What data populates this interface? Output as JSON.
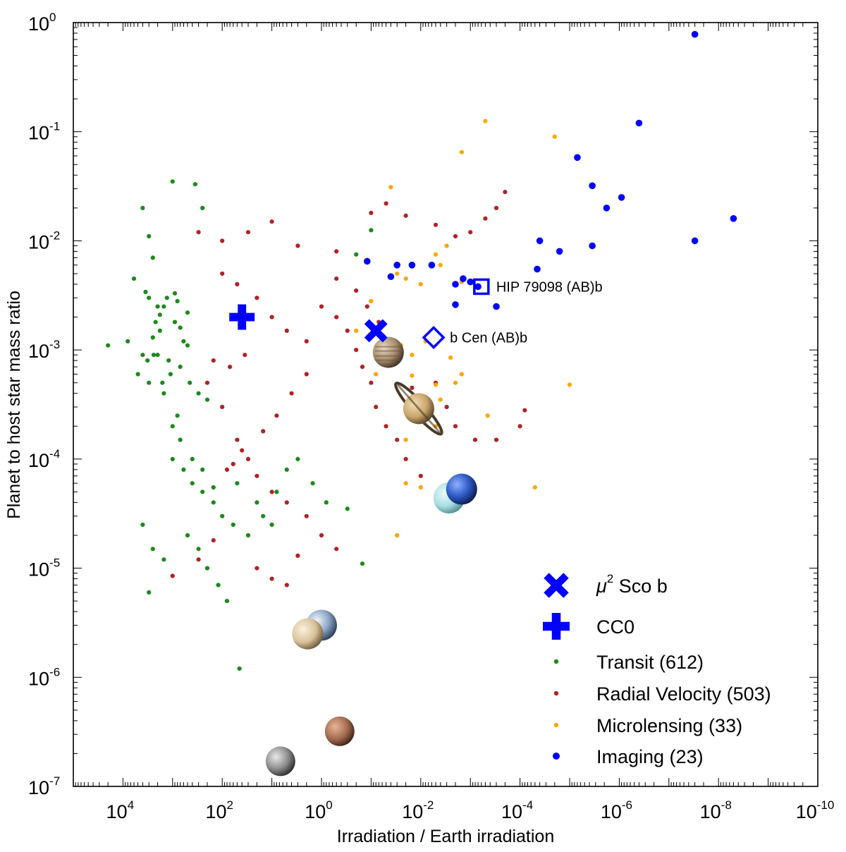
{
  "chart_data": {
    "type": "scatter",
    "xlabel": "Irradiation / Earth irradiation",
    "ylabel": "Planet to host star mass ratio",
    "x_scale": "log",
    "y_scale": "log",
    "x_reversed": true,
    "xlim": [
      100000,
      1e-10
    ],
    "ylim": [
      1e-07,
      1
    ],
    "x_ticks": [
      {
        "base": "10",
        "exp": "4",
        "value": 10000
      },
      {
        "base": "10",
        "exp": "2",
        "value": 100
      },
      {
        "base": "10",
        "exp": "0",
        "value": 1
      },
      {
        "base": "10",
        "exp": "-2",
        "value": 0.01
      },
      {
        "base": "10",
        "exp": "-4",
        "value": 0.0001
      },
      {
        "base": "10",
        "exp": "-6",
        "value": 1e-06
      },
      {
        "base": "10",
        "exp": "-8",
        "value": 1e-08
      },
      {
        "base": "10",
        "exp": "-10",
        "value": 1e-10
      }
    ],
    "y_ticks": [
      {
        "base": "10",
        "exp": "0",
        "value": 1
      },
      {
        "base": "10",
        "exp": "-1",
        "value": 0.1
      },
      {
        "base": "10",
        "exp": "-2",
        "value": 0.01
      },
      {
        "base": "10",
        "exp": "-3",
        "value": 0.001
      },
      {
        "base": "10",
        "exp": "-4",
        "value": 0.0001
      },
      {
        "base": "10",
        "exp": "-5",
        "value": 1e-05
      },
      {
        "base": "10",
        "exp": "-6",
        "value": 1e-06
      },
      {
        "base": "10",
        "exp": "-7",
        "value": 1e-07
      }
    ],
    "grid": false,
    "legend_position": "bottom-right",
    "colors": {
      "transit": "#1a8a1a",
      "radial_velocity": "#b22222",
      "microlensing": "#ffa500",
      "imaging": "#0000ff",
      "highlight": "#0000ff"
    },
    "series": [
      {
        "key": "transit",
        "name": "Transit (612)",
        "color": "#1a8a1a",
        "marker": "small-dot",
        "points": [
          [
            4000,
            0.02
          ],
          [
            3000,
            0.011
          ],
          [
            1000,
            0.035
          ],
          [
            350,
            0.033
          ],
          [
            250,
            0.02
          ],
          [
            2500,
            0.007
          ],
          [
            6000,
            0.0045
          ],
          [
            3000,
            0.003
          ],
          [
            1500,
            0.0025
          ],
          [
            800,
            0.0028
          ],
          [
            500,
            0.0022
          ],
          [
            20000,
            0.0011
          ],
          [
            8000,
            0.0012
          ],
          [
            4000,
            0.0009
          ],
          [
            2000,
            0.0009
          ],
          [
            1200,
            0.0008
          ],
          [
            700,
            0.0007
          ],
          [
            450,
            0.0005
          ],
          [
            300,
            0.0004
          ],
          [
            200,
            0.00035
          ],
          [
            5000,
            0.0006
          ],
          [
            3000,
            0.0005
          ],
          [
            2500,
            0.0013
          ],
          [
            1800,
            0.0015
          ],
          [
            900,
            0.0018
          ],
          [
            600,
            0.0012
          ],
          [
            1500,
            0.0004
          ],
          [
            800,
            0.00025
          ],
          [
            1000,
            0.0001
          ],
          [
            600,
            8e-05
          ],
          [
            400,
            6e-05
          ],
          [
            250,
            5e-05
          ],
          [
            150,
            4e-05
          ],
          [
            100,
            3e-05
          ],
          [
            60,
            2.5e-05
          ],
          [
            30,
            2e-05
          ],
          [
            15,
            3e-05
          ],
          [
            8,
            5e-05
          ],
          [
            5,
            8e-05
          ],
          [
            3,
            0.0001
          ],
          [
            500,
            2e-05
          ],
          [
            300,
            1.5e-05
          ],
          [
            200,
            1e-05
          ],
          [
            120,
            7e-06
          ],
          [
            80,
            5e-06
          ],
          [
            2500,
            1.5e-05
          ],
          [
            1500,
            1.2e-05
          ],
          [
            4000,
            2.5e-05
          ],
          [
            3000,
            6e-06
          ],
          [
            45,
            1.2e-06
          ],
          [
            1.5,
            6e-05
          ],
          [
            0.8,
            4e-05
          ],
          [
            0.3,
            3.5e-05
          ],
          [
            0.15,
            1.1e-05
          ],
          [
            0.1,
            0.0125
          ],
          [
            0.2,
            0.0075
          ],
          [
            3500,
            0.0034
          ],
          [
            2000,
            0.0025
          ],
          [
            1000,
            0.0002
          ],
          [
            700,
            0.00015
          ],
          [
            400,
            0.0001
          ],
          [
            250,
            8e-05
          ],
          [
            150,
            5.5e-05
          ],
          [
            50,
            6e-05
          ],
          [
            20,
            4e-05
          ],
          [
            10,
            2.5e-05
          ],
          [
            900,
            0.0033
          ],
          [
            1300,
            0.003
          ],
          [
            1800,
            0.0021
          ],
          [
            2200,
            0.0018
          ],
          [
            700,
            0.0016
          ],
          [
            500,
            0.0011
          ],
          [
            1100,
            0.0006
          ],
          [
            1600,
            0.0005
          ],
          [
            2400,
            0.0009
          ],
          [
            3200,
            0.0008
          ]
        ]
      },
      {
        "key": "radial_velocity",
        "name": "Radial Velocity (503)",
        "color": "#b22222",
        "marker": "small-dot",
        "points": [
          [
            300,
            0.012
          ],
          [
            100,
            0.01
          ],
          [
            30,
            0.012
          ],
          [
            10,
            0.015
          ],
          [
            3,
            0.009
          ],
          [
            0.5,
            0.008
          ],
          [
            0.1,
            0.018
          ],
          [
            0.05,
            0.022
          ],
          [
            0.02,
            0.017
          ],
          [
            0.005,
            0.014
          ],
          [
            0.002,
            0.011
          ],
          [
            0.001,
            0.012
          ],
          [
            0.0005,
            0.016
          ],
          [
            0.0003,
            0.02
          ],
          [
            0.0002,
            0.028
          ],
          [
            100,
            0.005
          ],
          [
            50,
            0.004
          ],
          [
            20,
            0.003
          ],
          [
            10,
            0.002
          ],
          [
            5,
            0.0015
          ],
          [
            2,
            0.0012
          ],
          [
            1,
            0.0025
          ],
          [
            0.5,
            0.002
          ],
          [
            0.3,
            0.0015
          ],
          [
            0.2,
            0.001
          ],
          [
            0.15,
            0.0007
          ],
          [
            0.1,
            0.0005
          ],
          [
            0.08,
            0.0003
          ],
          [
            0.05,
            0.0002
          ],
          [
            0.03,
            0.00015
          ],
          [
            0.02,
            0.0001
          ],
          [
            0.01,
            7e-05
          ],
          [
            0.005,
            0.0005
          ],
          [
            0.003,
            0.0003
          ],
          [
            0.002,
            0.0002
          ],
          [
            0.0008,
            0.00015
          ],
          [
            0.0003,
            0.00015
          ],
          [
            200,
            0.0005
          ],
          [
            100,
            0.0003
          ],
          [
            50,
            0.00015
          ],
          [
            30,
            0.0001
          ],
          [
            20,
            7e-05
          ],
          [
            10,
            5e-05
          ],
          [
            5,
            4e-05
          ],
          [
            2,
            3e-05
          ],
          [
            1,
            2e-05
          ],
          [
            0.5,
            1.5e-05
          ],
          [
            20,
            1e-05
          ],
          [
            10,
            8e-06
          ],
          [
            5,
            7e-06
          ],
          [
            3,
            1.3e-05
          ],
          [
            1000,
            8.5e-06
          ],
          [
            300,
            1.2e-05
          ],
          [
            150,
            1.8e-05
          ],
          [
            0.0001,
            0.0002
          ],
          [
            8e-05,
            0.00028
          ],
          [
            0.5,
            0.0045
          ],
          [
            0.2,
            0.0035
          ],
          [
            0.12,
            0.0025
          ],
          [
            0.07,
            0.0018
          ],
          [
            0.04,
            0.0012
          ],
          [
            0.03,
            0.0008
          ],
          [
            0.015,
            0.00045
          ],
          [
            2,
            0.0006
          ],
          [
            4,
            0.0004
          ],
          [
            8,
            0.00025
          ],
          [
            15,
            0.00018
          ],
          [
            40,
            0.00012
          ],
          [
            60,
            9e-05
          ],
          [
            80,
            8e-05
          ],
          [
            150,
            0.0008
          ],
          [
            70,
            0.0007
          ],
          [
            35,
            0.0009
          ]
        ]
      },
      {
        "key": "microlensing",
        "name": "Microlensing (33)",
        "color": "#ffa500",
        "marker": "small-dot",
        "points": [
          [
            0.0005,
            0.125
          ],
          [
            2e-05,
            0.09
          ],
          [
            0.0015,
            0.065
          ],
          [
            0.04,
            0.031
          ],
          [
            0.003,
            0.009
          ],
          [
            0.005,
            0.0075
          ],
          [
            0.004,
            0.006
          ],
          [
            0.03,
            0.005
          ],
          [
            0.02,
            0.0045
          ],
          [
            0.01,
            0.004
          ],
          [
            0.0015,
            0.0042
          ],
          [
            1e-05,
            0.00048
          ],
          [
            0.00045,
            0.00025
          ],
          [
            0.005,
            0.0002
          ],
          [
            0.02,
            0.00015
          ],
          [
            0.005,
            0.00048
          ],
          [
            0.015,
            0.00058
          ],
          [
            0.02,
            6e-05
          ],
          [
            0.01,
            5.5e-05
          ],
          [
            0.003,
            4.5e-05
          ],
          [
            5e-05,
            5.5e-05
          ],
          [
            0.03,
            2e-05
          ],
          [
            0.08,
            0.0006
          ],
          [
            0.002,
            0.0005
          ],
          [
            0.006,
            0.0003
          ],
          [
            0.004,
            0.00035
          ],
          [
            0.025,
            0.0011
          ],
          [
            0.1,
            0.0028
          ],
          [
            0.2,
            0.0015
          ],
          [
            0.015,
            0.0009
          ],
          [
            0.008,
            0.0012
          ],
          [
            0.0025,
            0.00085
          ],
          [
            0.0015,
            0.0006
          ]
        ]
      },
      {
        "key": "imaging",
        "name": "Imaging (23)",
        "color": "#0000ff",
        "marker": "dot",
        "points": [
          [
            3e-08,
            0.78
          ],
          [
            4e-07,
            0.12
          ],
          [
            7e-06,
            0.058
          ],
          [
            3.5e-06,
            0.032
          ],
          [
            1.8e-06,
            0.02
          ],
          [
            9e-07,
            0.025
          ],
          [
            5e-09,
            0.016
          ],
          [
            3e-08,
            0.01
          ],
          [
            3.5e-06,
            0.009
          ],
          [
            1.6e-05,
            0.008
          ],
          [
            4e-05,
            0.01
          ],
          [
            4.5e-05,
            0.0055
          ],
          [
            0.0003,
            0.0025
          ],
          [
            0.002,
            0.004
          ],
          [
            0.002,
            0.0026
          ],
          [
            0.0007,
            0.0038
          ],
          [
            0.001,
            0.0042
          ],
          [
            0.0014,
            0.0045
          ],
          [
            0.006,
            0.006
          ],
          [
            0.015,
            0.006
          ],
          [
            0.03,
            0.006
          ],
          [
            0.04,
            0.0047
          ],
          [
            0.12,
            0.0065
          ]
        ]
      }
    ],
    "highlights": [
      {
        "name": "μ² Sco b",
        "marker": "x-cross",
        "x": 0.08,
        "y": 0.0015
      },
      {
        "name": "CC0",
        "marker": "plus",
        "x": 40,
        "y": 0.002
      },
      {
        "label": "HIP 79098 (AB)b",
        "marker": "open-square",
        "x": 0.0006,
        "y": 0.0038
      },
      {
        "label": "b Cen (AB)b",
        "marker": "open-diamond",
        "x": 0.0055,
        "y": 0.0013
      }
    ],
    "solar_system": [
      {
        "icon": "jupiter-icon",
        "x": 0.045,
        "y": 0.00095,
        "color": "#a48a6b"
      },
      {
        "icon": "saturn-icon",
        "x": 0.011,
        "y": 0.00029,
        "color": "#c9a56b"
      },
      {
        "icon": "uranus-icon",
        "x": 0.0027,
        "y": 4.4e-05,
        "color": "#a8dde0"
      },
      {
        "icon": "neptune-icon",
        "x": 0.0015,
        "y": 5.3e-05,
        "color": "#2f5bc8"
      },
      {
        "icon": "earth-icon",
        "x": 1.0,
        "y": 3e-06,
        "color": "#6d8fbf"
      },
      {
        "icon": "venus-icon",
        "x": 1.9,
        "y": 2.5e-06,
        "color": "#d8c29a"
      },
      {
        "icon": "mars-icon",
        "x": 0.43,
        "y": 3.2e-07,
        "color": "#a36a4e"
      },
      {
        "icon": "mercury-icon",
        "x": 6.7,
        "y": 1.7e-07,
        "color": "#8a8a8a"
      }
    ],
    "legend": [
      {
        "label": "μ",
        "sup": "2",
        "rest": " Sco b",
        "marker": "x-cross",
        "color": "#0000ff"
      },
      {
        "label": "CC0",
        "marker": "plus",
        "color": "#0000ff"
      },
      {
        "label": "Transit (612)",
        "marker": "dot",
        "color": "#1a8a1a"
      },
      {
        "label": "Radial Velocity (503)",
        "marker": "dot",
        "color": "#b22222"
      },
      {
        "label": "Microlensing (33)",
        "marker": "dot",
        "color": "#ffa500"
      },
      {
        "label": "Imaging (23)",
        "marker": "dot",
        "color": "#0000ff"
      }
    ]
  }
}
